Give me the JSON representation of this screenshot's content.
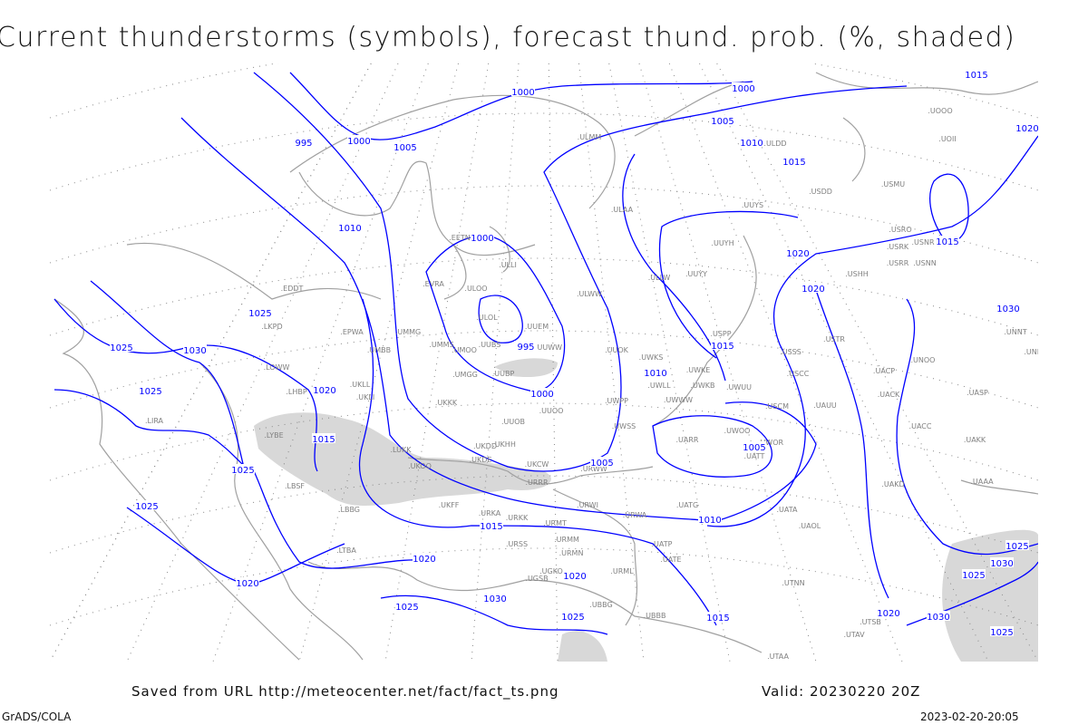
{
  "title": "Current thunderstorms (symbols), forecast thund. prob. (%, shaded)",
  "footer": {
    "source": "Saved from URL http://meteocenter.net/fact/fact_ts.png",
    "valid": "Valid: 20230220 20Z",
    "software": "GrADS/COLA",
    "timestamp": "2023-02-20-20:05"
  },
  "colors": {
    "isobar": "#0000ff",
    "coast": "#a0a0a0",
    "shading": "#d8d8d8",
    "station": "#808080"
  },
  "isobar_labels": [
    "995",
    "1000",
    "1005",
    "1010",
    "1025",
    "1025",
    "1030",
    "1025",
    "1020",
    "1015",
    "1025",
    "1025",
    "1020",
    "1020",
    "1015",
    "1030",
    "1025",
    "1025",
    "1020",
    "1000",
    "995",
    "1000",
    "1005",
    "1010",
    "1005",
    "1010",
    "1015",
    "1020",
    "1020",
    "1015",
    "1010",
    "1005",
    "1000",
    "1000",
    "1015",
    "1020",
    "1015",
    "1030",
    "1015",
    "1030",
    "1025",
    "1025",
    "1030",
    "1025",
    "1020"
  ],
  "stations": [
    "EDDT",
    "EPWA",
    "UMMG",
    "UMBB",
    "UMMS",
    "UMOO",
    "LKPD",
    "LOWW",
    "LHBP",
    "UKLL",
    "UKLI",
    "UKKK",
    "UUOB",
    "UUOO",
    "UKHH",
    "UKDD",
    "UKDE",
    "UKCW",
    "URRR",
    "LUKK",
    "UKOO",
    "LYBE",
    "LBSF",
    "LBBG",
    "UKFF",
    "URKA",
    "URKK",
    "URMT",
    "URMM",
    "URMN",
    "URSS",
    "UGSB",
    "UGKO",
    "LTBA",
    "UUBS",
    "UUBP",
    "UMGG",
    "ULOL",
    "ULOO",
    "EVRA",
    "EETN",
    "ULLI",
    "ULWW",
    "UUEM",
    "UUWW",
    "UUOK",
    "UWKS",
    "UWKE",
    "UWKB",
    "UWUU",
    "UWWW",
    "UWPP",
    "UWLL",
    "UWSS",
    "URWW",
    "URWI",
    "URWA",
    "UATG",
    "UARR",
    "UWOO",
    "UWOR",
    "UATT",
    "UATE",
    "UATP",
    "URML",
    "UBBG",
    "UBBB",
    "UTAA",
    "UTAV",
    "UTSB",
    "UTNN",
    "UAOL",
    "UATA",
    "UACC",
    "UAKK",
    "UAKD",
    "UAAA",
    "UAUU",
    "UASP",
    "UACK",
    "UACP",
    "UNOO",
    "UNNT",
    "UNBB",
    "USCC",
    "USSS",
    "USCM",
    "USTR",
    "USPP",
    "USHH",
    "USRR",
    "USNN",
    "USRK",
    "USNR",
    "USRO",
    "USMU",
    "USDD",
    "UUYS",
    "UUYH",
    "UUYY",
    "ULLW",
    "ULAA",
    "ULMM",
    "ULDD",
    "UOOO",
    "UOII",
    "LIRA"
  ]
}
